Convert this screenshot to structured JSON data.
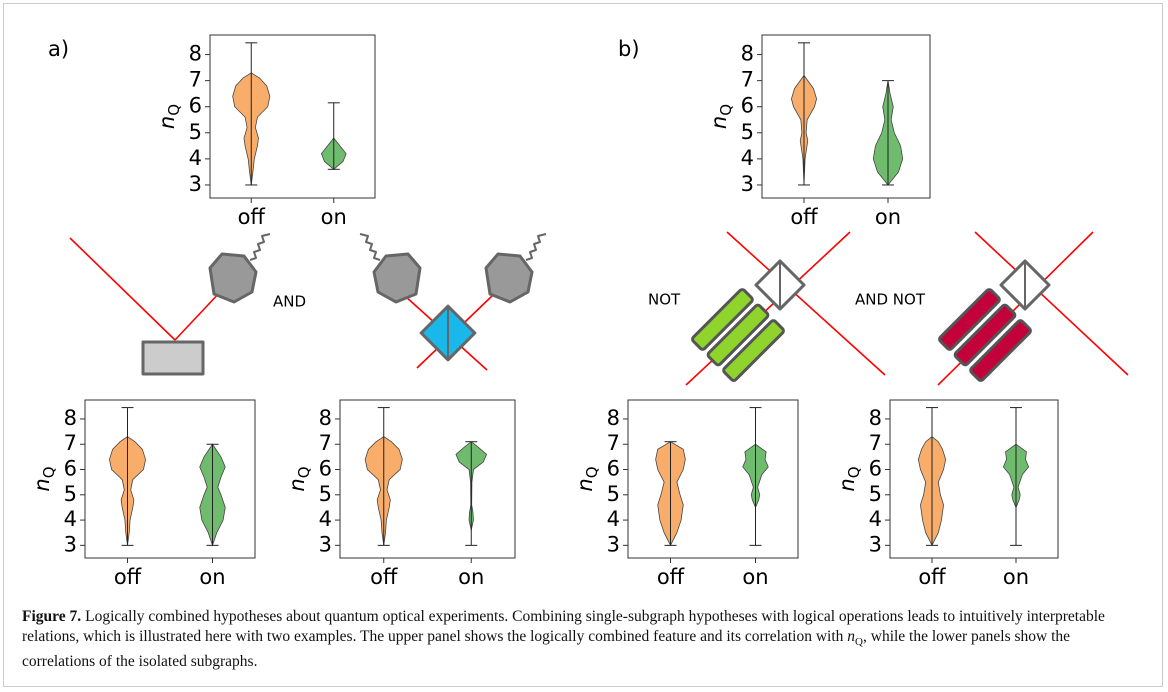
{
  "panel_labels": [
    "a)",
    "b)"
  ],
  "operators": [
    "AND",
    "NOT",
    "AND NOT"
  ],
  "caption": {
    "label": "Figure 7.",
    "text": "Logically combined hypotheses about quantum optical experiments. Combining single-subgraph hypotheses with logical operations leads to intuitively interpretable relations, which is illustrated here with two examples. The upper panel shows the logically combined feature and its correlation with ",
    "symbol": "n",
    "subscript": "Q",
    "text_end": ", while the lower panels show the correlations of the isolated subgraphs."
  },
  "chart_data": [
    {
      "type": "violin",
      "categories": [
        "off",
        "on"
      ],
      "ylabel": "n",
      "ylabel_sub": "Q",
      "ylim": [
        2.5,
        8.75
      ],
      "yticks": [
        3,
        4,
        5,
        6,
        7,
        8
      ],
      "series": [
        {
          "color": "#f8a45b",
          "min": 3.0,
          "max": 8.45,
          "density_y": [
            3.0,
            3.5,
            4.0,
            4.5,
            4.8,
            5.2,
            5.6,
            6.0,
            6.4,
            6.8,
            7.1,
            7.3
          ],
          "density": [
            0,
            0.08,
            0.15,
            0.3,
            0.35,
            0.2,
            0.3,
            0.8,
            0.9,
            0.75,
            0.4,
            0
          ]
        },
        {
          "color": "#5fb55f",
          "min": 3.6,
          "max": 6.15,
          "density_y": [
            3.6,
            3.9,
            4.2,
            4.5,
            4.8
          ],
          "density": [
            0,
            0.45,
            0.6,
            0.3,
            0
          ]
        }
      ]
    },
    {
      "type": "violin",
      "categories": [
        "off",
        "on"
      ],
      "ylabel": "n",
      "ylabel_sub": "Q",
      "ylim": [
        2.5,
        8.75
      ],
      "yticks": [
        3,
        4,
        5,
        6,
        7,
        8
      ],
      "series": [
        {
          "color": "#f8a45b",
          "min": 3.0,
          "max": 8.45,
          "density_y": [
            3.0,
            4.0,
            4.7,
            5.0,
            5.5,
            6.0,
            6.3,
            6.7,
            7.2
          ],
          "density": [
            0,
            0.05,
            0.18,
            0.1,
            0.15,
            0.5,
            0.6,
            0.45,
            0
          ]
        },
        {
          "color": "#5fb55f",
          "min": 3.0,
          "max": 7.0,
          "density_y": [
            3.0,
            3.5,
            4.0,
            4.5,
            5.0,
            5.5,
            6.0,
            6.5,
            7.0
          ],
          "density": [
            0,
            0.5,
            0.7,
            0.6,
            0.3,
            0.15,
            0.25,
            0.1,
            0
          ]
        }
      ]
    },
    {
      "type": "violin",
      "categories": [
        "off",
        "on"
      ],
      "ylabel": "n",
      "ylabel_sub": "Q",
      "ylim": [
        2.5,
        8.75
      ],
      "yticks": [
        3,
        4,
        5,
        6,
        7,
        8
      ],
      "series": [
        {
          "color": "#f8a45b",
          "min": 3.0,
          "max": 8.45,
          "density_y": [
            3.0,
            3.5,
            4.0,
            4.5,
            4.8,
            5.2,
            5.6,
            6.0,
            6.4,
            6.8,
            7.1,
            7.3
          ],
          "density": [
            0,
            0.08,
            0.12,
            0.25,
            0.3,
            0.15,
            0.25,
            0.75,
            0.85,
            0.7,
            0.35,
            0
          ]
        },
        {
          "color": "#5fb55f",
          "min": 3.0,
          "max": 7.0,
          "density_y": [
            3.0,
            3.5,
            4.0,
            4.5,
            5.0,
            5.3,
            5.7,
            6.1,
            6.5,
            7.0
          ],
          "density": [
            0,
            0.2,
            0.5,
            0.6,
            0.4,
            0.25,
            0.4,
            0.6,
            0.4,
            0
          ]
        }
      ]
    },
    {
      "type": "violin",
      "categories": [
        "off",
        "on"
      ],
      "ylabel": "n",
      "ylabel_sub": "Q",
      "ylim": [
        2.5,
        8.75
      ],
      "yticks": [
        3,
        4,
        5,
        6,
        7,
        8
      ],
      "series": [
        {
          "color": "#f8a45b",
          "min": 3.0,
          "max": 8.45,
          "density_y": [
            3.0,
            3.5,
            4.0,
            4.5,
            4.8,
            5.2,
            5.6,
            6.0,
            6.4,
            6.8,
            7.1,
            7.3
          ],
          "density": [
            0,
            0.08,
            0.12,
            0.25,
            0.3,
            0.15,
            0.25,
            0.75,
            0.85,
            0.7,
            0.35,
            0
          ]
        },
        {
          "color": "#5fb55f",
          "min": 3.0,
          "max": 7.1,
          "density_y": [
            3.6,
            4.0,
            4.3,
            4.6,
            5.5,
            6.0,
            6.3,
            6.6,
            6.9,
            7.1
          ],
          "density": [
            0,
            0.1,
            0.08,
            0.02,
            0.03,
            0.1,
            0.55,
            0.7,
            0.3,
            0
          ]
        }
      ]
    },
    {
      "type": "violin",
      "categories": [
        "off",
        "on"
      ],
      "ylabel": "n",
      "ylabel_sub": "Q",
      "ylim": [
        2.5,
        8.75
      ],
      "yticks": [
        3,
        4,
        5,
        6,
        7,
        8
      ],
      "series": [
        {
          "color": "#f8a45b",
          "min": 3.0,
          "max": 7.1,
          "density_y": [
            3.0,
            3.5,
            4.0,
            4.6,
            5.0,
            5.5,
            6.0,
            6.4,
            6.8,
            7.1
          ],
          "density": [
            0,
            0.3,
            0.5,
            0.6,
            0.45,
            0.3,
            0.6,
            0.7,
            0.6,
            0
          ]
        },
        {
          "color": "#5fb55f",
          "min": 3.0,
          "max": 8.45,
          "density_y": [
            4.5,
            4.8,
            5.0,
            5.3,
            5.8,
            6.1,
            6.4,
            6.7,
            7.0
          ],
          "density": [
            0,
            0.15,
            0.2,
            0.1,
            0.3,
            0.6,
            0.45,
            0.5,
            0
          ]
        }
      ]
    },
    {
      "type": "violin",
      "categories": [
        "off",
        "on"
      ],
      "ylabel": "n",
      "ylabel_sub": "Q",
      "ylim": [
        2.5,
        8.75
      ],
      "yticks": [
        3,
        4,
        5,
        6,
        7,
        8
      ],
      "series": [
        {
          "color": "#f8a45b",
          "min": 3.0,
          "max": 8.45,
          "density_y": [
            3.0,
            3.5,
            4.0,
            4.6,
            5.0,
            5.5,
            6.0,
            6.4,
            6.8,
            7.1,
            7.3
          ],
          "density": [
            0,
            0.3,
            0.45,
            0.55,
            0.4,
            0.3,
            0.55,
            0.65,
            0.5,
            0.3,
            0
          ]
        },
        {
          "color": "#5fb55f",
          "min": 3.0,
          "max": 8.45,
          "density_y": [
            4.5,
            4.8,
            5.0,
            5.3,
            5.8,
            6.1,
            6.4,
            6.7,
            7.0
          ],
          "density": [
            0,
            0.15,
            0.2,
            0.1,
            0.3,
            0.6,
            0.45,
            0.5,
            0
          ]
        }
      ]
    }
  ]
}
